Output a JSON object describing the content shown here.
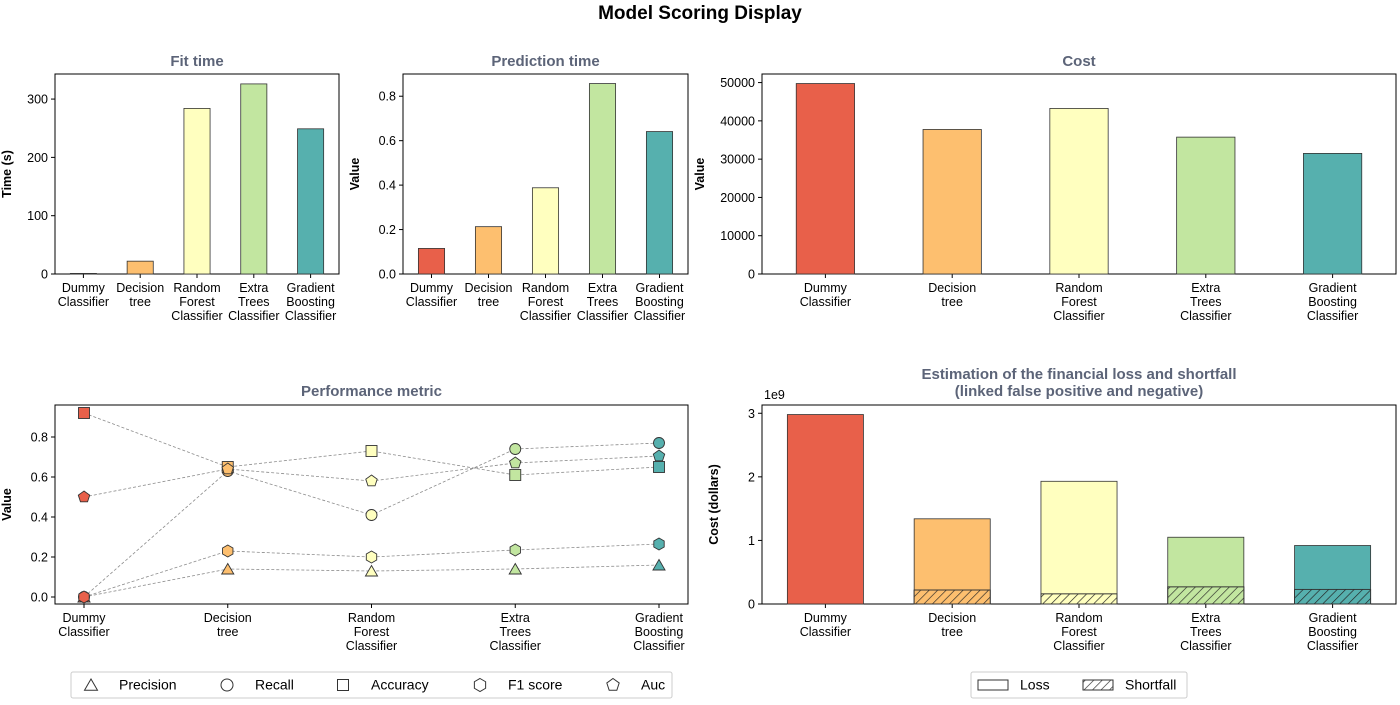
{
  "page_title": "Model Scoring Display",
  "colors": {
    "Dummy Classifier": "#e8604a",
    "Decision tree": "#fdbf6f",
    "Random Forest Classifier": "#ffffbf",
    "Extra Trees Classifier": "#c2e6a0",
    "Gradient Boosting Classifier": "#56b0ae",
    "title": "#5c6478",
    "line": "#8c8c8c"
  },
  "chart_data": [
    {
      "type": "bar",
      "title": "Fit time",
      "ylabel": "Time (s)",
      "categories": [
        "Dummy Classifier",
        "Decision tree",
        "Random Forest Classifier",
        "Extra Trees Classifier",
        "Gradient Boosting Classifier"
      ],
      "tick_labels": [
        [
          "Dummy",
          "Classifier"
        ],
        [
          "Decision",
          "tree"
        ],
        [
          "Random",
          "Forest",
          "Classifier"
        ],
        [
          "Extra",
          "Trees",
          "Classifier"
        ],
        [
          "Gradient",
          "Boosting",
          "Classifier"
        ]
      ],
      "values": [
        1,
        22,
        284,
        326,
        249
      ],
      "ylim": [
        0,
        343
      ],
      "yticks": [
        "0",
        "100",
        "200",
        "300"
      ],
      "ytick_values": [
        0,
        100,
        200,
        300
      ]
    },
    {
      "type": "bar",
      "title": "Prediction time",
      "ylabel": "Value",
      "categories": [
        "Dummy Classifier",
        "Decision tree",
        "Random Forest Classifier",
        "Extra Trees Classifier",
        "Gradient Boosting Classifier"
      ],
      "tick_labels": [
        [
          "Dummy",
          "Classifier"
        ],
        [
          "Decision",
          "tree"
        ],
        [
          "Random",
          "Forest",
          "Classifier"
        ],
        [
          "Extra",
          "Trees",
          "Classifier"
        ],
        [
          "Gradient",
          "Boosting",
          "Classifier"
        ]
      ],
      "values": [
        0.115,
        0.213,
        0.388,
        0.857,
        0.641
      ],
      "ylim": [
        0,
        0.9
      ],
      "yticks": [
        "0.0",
        "0.2",
        "0.4",
        "0.6",
        "0.8"
      ],
      "ytick_values": [
        0,
        0.2,
        0.4,
        0.6,
        0.8
      ]
    },
    {
      "type": "bar",
      "title": "Cost",
      "ylabel": "Value",
      "categories": [
        "Dummy Classifier",
        "Decision tree",
        "Random Forest Classifier",
        "Extra Trees Classifier",
        "Gradient Boosting Classifier"
      ],
      "tick_labels": [
        [
          "Dummy",
          "Classifier"
        ],
        [
          "Decision",
          "tree"
        ],
        [
          "Random",
          "Forest",
          "Classifier"
        ],
        [
          "Extra",
          "Trees",
          "Classifier"
        ],
        [
          "Gradient",
          "Boosting",
          "Classifier"
        ]
      ],
      "values": [
        49750,
        37750,
        43250,
        35750,
        31500
      ],
      "ylim": [
        0,
        52240
      ],
      "yticks": [
        "0",
        "10000",
        "20000",
        "30000",
        "40000",
        "50000"
      ],
      "ytick_values": [
        0,
        10000,
        20000,
        30000,
        40000,
        50000
      ]
    },
    {
      "type": "scatter",
      "title": "Performance metric",
      "ylabel": "Value",
      "categories": [
        "Dummy Classifier",
        "Decision tree",
        "Random Forest Classifier",
        "Extra Trees Classifier",
        "Gradient Boosting Classifier"
      ],
      "tick_labels": [
        [
          "Dummy",
          "Classifier"
        ],
        [
          "Decision",
          "tree"
        ],
        [
          "Random",
          "Forest",
          "Classifier"
        ],
        [
          "Extra",
          "Trees",
          "Classifier"
        ],
        [
          "Gradient",
          "Boosting",
          "Classifier"
        ]
      ],
      "ylim": [
        -0.035,
        0.96
      ],
      "yticks": [
        "0.0",
        "0.2",
        "0.4",
        "0.6",
        "0.8"
      ],
      "ytick_values": [
        0,
        0.2,
        0.4,
        0.6,
        0.8
      ],
      "series": [
        {
          "name": "Precision",
          "marker": "triangle",
          "values": [
            0.0,
            0.14,
            0.13,
            0.14,
            0.16
          ]
        },
        {
          "name": "Recall",
          "marker": "circle",
          "values": [
            0.0,
            0.63,
            0.41,
            0.74,
            0.77
          ]
        },
        {
          "name": "Accuracy",
          "marker": "square",
          "values": [
            0.92,
            0.65,
            0.73,
            0.61,
            0.65
          ]
        },
        {
          "name": "F1 score",
          "marker": "hexagon",
          "values": [
            0.0,
            0.23,
            0.2,
            0.235,
            0.265
          ]
        },
        {
          "name": "Auc",
          "marker": "pentagon",
          "values": [
            0.5,
            0.64,
            0.58,
            0.67,
            0.705
          ]
        }
      ]
    },
    {
      "type": "bar",
      "title": [
        "Estimation of the financial loss and shortfall",
        "(linked false positive and negative)"
      ],
      "ylabel": "Cost (dollars)",
      "multiplier": "1e9",
      "categories": [
        "Dummy Classifier",
        "Decision tree",
        "Random Forest Classifier",
        "Extra Trees Classifier",
        "Gradient Boosting Classifier"
      ],
      "tick_labels": [
        [
          "Dummy",
          "Classifier"
        ],
        [
          "Decision",
          "tree"
        ],
        [
          "Random",
          "Forest",
          "Classifier"
        ],
        [
          "Extra",
          "Trees",
          "Classifier"
        ],
        [
          "Gradient",
          "Boosting",
          "Classifier"
        ]
      ],
      "ylim": [
        0,
        3.13
      ],
      "yticks": [
        "0",
        "1",
        "2",
        "3"
      ],
      "ytick_values": [
        0,
        1,
        2,
        3
      ],
      "series": [
        {
          "name": "Loss",
          "values": [
            2.98,
            1.34,
            1.93,
            1.05,
            0.92
          ]
        },
        {
          "name": "Shortfall",
          "values": [
            0.0,
            0.22,
            0.16,
            0.27,
            0.23
          ]
        }
      ]
    }
  ],
  "legends": {
    "metrics": [
      "Precision",
      "Recall",
      "Accuracy",
      "F1 score",
      "Auc"
    ],
    "loss": [
      "Loss",
      "Shortfall"
    ]
  }
}
